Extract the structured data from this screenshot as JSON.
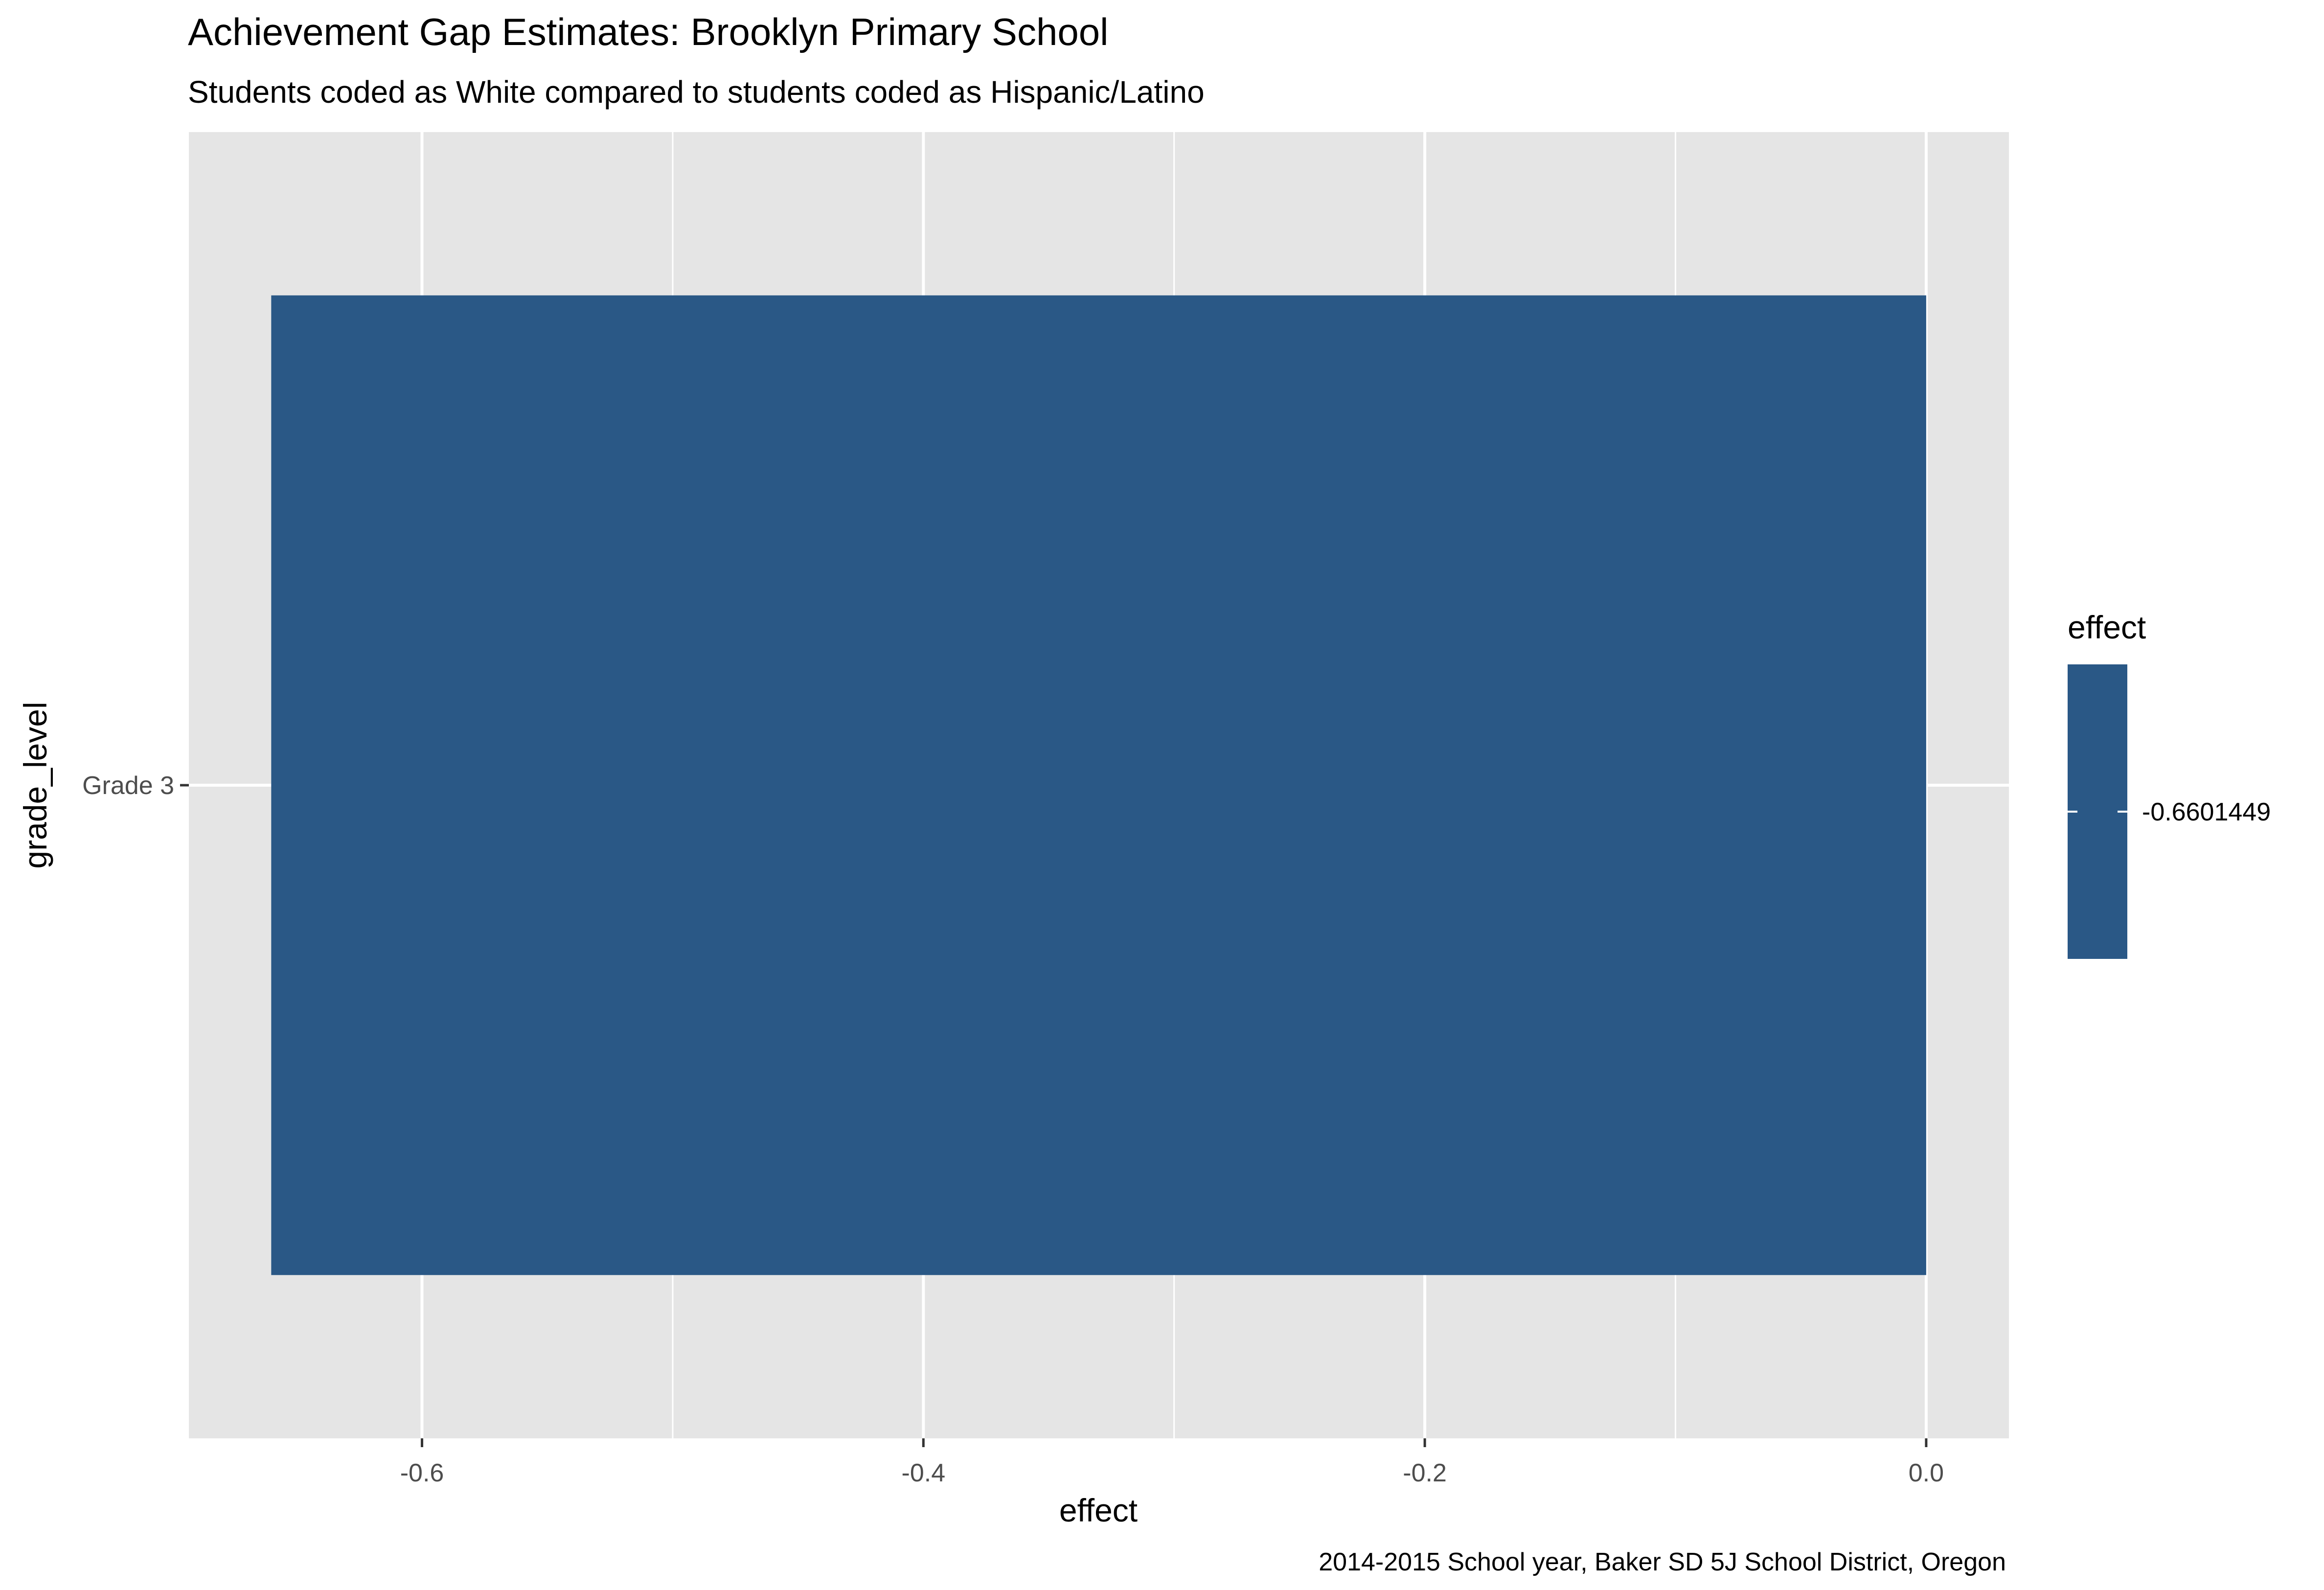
{
  "chart_data": {
    "type": "bar",
    "orientation": "horizontal",
    "title": "Achievement Gap Estimates: Brooklyn Primary School",
    "subtitle": "Students coded as White compared to students coded as Hispanic/Latino",
    "caption": "2014-2015 School year, Baker SD 5J School District, Oregon",
    "xlabel": "effect",
    "ylabel": "grade_level",
    "categories": [
      "Grade 3"
    ],
    "values": [
      -0.6601449
    ],
    "xlim": [
      -0.693,
      0.033
    ],
    "x_ticks": [
      -0.6,
      -0.4,
      -0.2,
      0.0
    ],
    "x_tick_labels": [
      "-0.6",
      "-0.4",
      "-0.2",
      "0.0"
    ],
    "grid": true,
    "legend": {
      "title": "effect",
      "position": "right",
      "labels": [
        "-0.6601449"
      ]
    },
    "colors": {
      "bar": "#2A5886",
      "panel_background": "#E5E5E5",
      "grid": "#FFFFFF"
    }
  }
}
